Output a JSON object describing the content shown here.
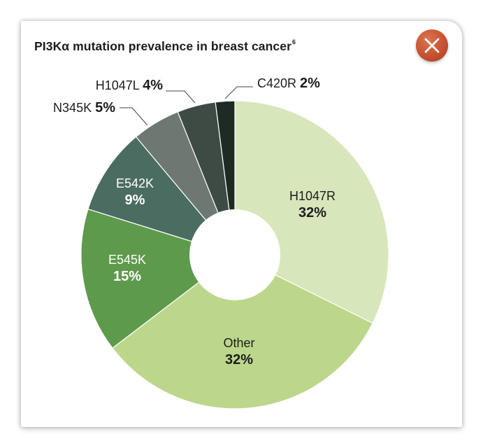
{
  "card": {
    "title": "PI3Kα mutation prevalence in breast cancer",
    "title_superscript": "6",
    "close_icon": "close-icon"
  },
  "colors": {
    "close_button": "#c65230",
    "label_connector": "#444444"
  },
  "chart_data": {
    "type": "pie",
    "variant": "donut",
    "start": "12 o'clock, clockwise",
    "unit": "%",
    "slices": [
      {
        "label": "H1047R",
        "value": 32,
        "value_text": "32%",
        "color": "#d8e6bb",
        "label_placement": "inside"
      },
      {
        "label": "Other",
        "value": 32,
        "value_text": "32%",
        "color": "#bcd78c",
        "label_placement": "inside"
      },
      {
        "label": "E545K",
        "value": 15,
        "value_text": "15%",
        "color": "#5e9a4c",
        "label_placement": "inside"
      },
      {
        "label": "E542K",
        "value": 9,
        "value_text": "9%",
        "color": "#4b6c61",
        "label_placement": "inside"
      },
      {
        "label": "N345K",
        "value": 5,
        "value_text": "5%",
        "color": "#6d7873",
        "label_placement": "outside"
      },
      {
        "label": "H1047L",
        "value": 4,
        "value_text": "4%",
        "color": "#3e4b45",
        "label_placement": "outside"
      },
      {
        "label": "C420R",
        "value": 2,
        "value_text": "2%",
        "color": "#1e2b25",
        "label_placement": "outside"
      }
    ]
  }
}
